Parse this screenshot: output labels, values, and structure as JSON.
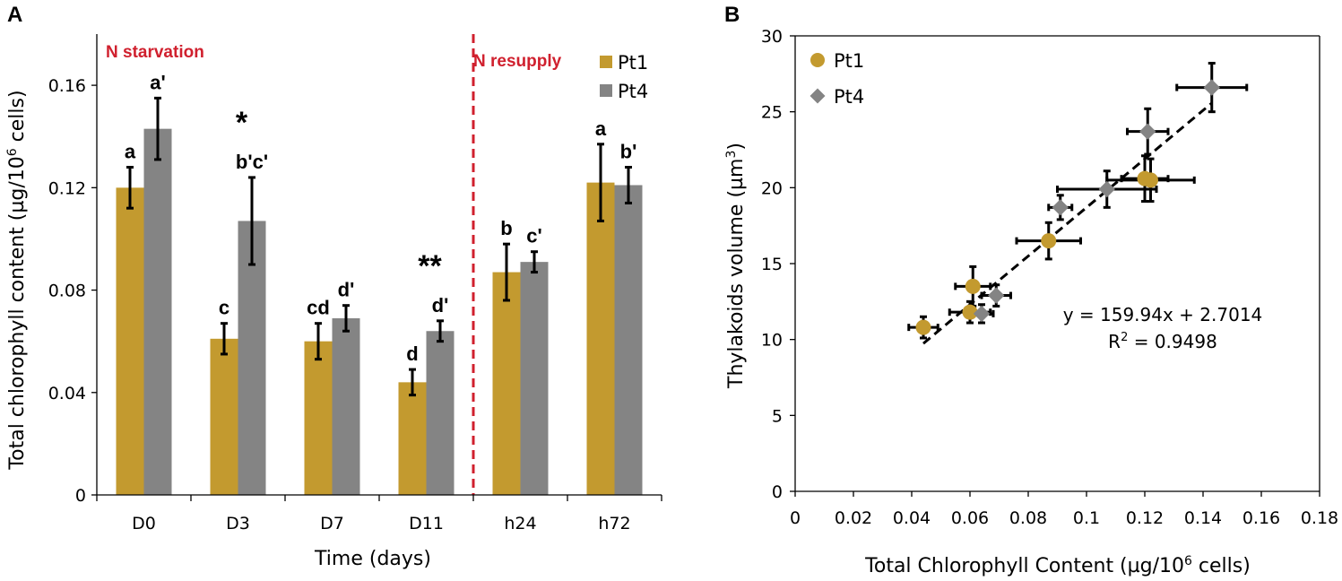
{
  "colors": {
    "pt1": "#c39a2f",
    "pt4": "#848484",
    "divider": "#d0202e"
  },
  "panel_a": {
    "letter": "A",
    "phase_labels": {
      "starvation": "N starvation",
      "resupply": "N resupply"
    },
    "legend": [
      "Pt1",
      "Pt4"
    ]
  },
  "panel_b": {
    "letter": "B",
    "legend": [
      "Pt1",
      "Pt4"
    ],
    "equation": "y = 159.94x + 2.7014",
    "r2_label": "R",
    "r2_sup": "2",
    "r2_value": " = 0.9498"
  },
  "chart_data": [
    {
      "type": "bar",
      "title": "",
      "xlabel": "Time (days)",
      "ylabel_main": "Total chlorophyll content (µg/10",
      "ylabel_sup": "6",
      "ylabel_end": " cells)",
      "categories": [
        "D0",
        "D3",
        "D7",
        "D11",
        "h24",
        "h72"
      ],
      "ylim": [
        0,
        0.18
      ],
      "yticks": [
        0,
        0.04,
        0.08,
        0.12,
        0.16
      ],
      "ytick_labels": [
        "0",
        "0.04",
        "0.08",
        "0.12",
        "0.16"
      ],
      "series": [
        {
          "name": "Pt1",
          "values": [
            0.12,
            0.061,
            0.06,
            0.044,
            0.087,
            0.122
          ],
          "errors": [
            0.008,
            0.006,
            0.007,
            0.005,
            0.011,
            0.015
          ],
          "labels": [
            "a",
            "c",
            "cd",
            "d",
            "b",
            "a"
          ]
        },
        {
          "name": "Pt4",
          "values": [
            0.143,
            0.107,
            0.069,
            0.064,
            0.091,
            0.121
          ],
          "errors": [
            0.012,
            0.017,
            0.005,
            0.004,
            0.004,
            0.007
          ],
          "labels": [
            "a'",
            "b'c'",
            "d'",
            "d'",
            "c'",
            "b'"
          ]
        }
      ],
      "significance": [
        {
          "category": "D3",
          "text": "*"
        },
        {
          "category": "D11",
          "text": "**"
        }
      ],
      "divider_after_category": "D11"
    },
    {
      "type": "scatter",
      "title": "",
      "xlabel_main": "Total Chlorophyll Content (µg/10",
      "xlabel_sup": "6",
      "xlabel_end": " cells)",
      "ylabel_main": "Thylakoids volume (µm",
      "ylabel_sup": "3",
      "ylabel_end": ")",
      "xlim": [
        0,
        0.18
      ],
      "ylim": [
        0,
        30
      ],
      "xticks": [
        0,
        0.02,
        0.04,
        0.06,
        0.08,
        0.1,
        0.12,
        0.14,
        0.16,
        0.18
      ],
      "xtick_labels": [
        "0",
        "0.02",
        "0.04",
        "0.06",
        "0.08",
        "0.1",
        "0.12",
        "0.14",
        "0.16",
        "0.18"
      ],
      "yticks": [
        0,
        5,
        10,
        15,
        20,
        25,
        30
      ],
      "ytick_labels": [
        "0",
        "5",
        "10",
        "15",
        "20",
        "25",
        "30"
      ],
      "series": [
        {
          "name": "Pt1",
          "marker": "circle",
          "points": [
            {
              "x": 0.12,
              "y": 20.6,
              "xerr": 0.008,
              "yerr": 1.5
            },
            {
              "x": 0.061,
              "y": 13.5,
              "xerr": 0.006,
              "yerr": 1.3
            },
            {
              "x": 0.06,
              "y": 11.8,
              "xerr": 0.007,
              "yerr": 0.7
            },
            {
              "x": 0.044,
              "y": 10.8,
              "xerr": 0.005,
              "yerr": 0.7
            },
            {
              "x": 0.087,
              "y": 16.5,
              "xerr": 0.011,
              "yerr": 1.2
            },
            {
              "x": 0.122,
              "y": 20.5,
              "xerr": 0.015,
              "yerr": 1.4
            }
          ]
        },
        {
          "name": "Pt4",
          "marker": "diamond",
          "points": [
            {
              "x": 0.143,
              "y": 26.6,
              "xerr": 0.012,
              "yerr": 1.6
            },
            {
              "x": 0.121,
              "y": 23.7,
              "xerr": 0.007,
              "yerr": 1.5
            },
            {
              "x": 0.107,
              "y": 19.9,
              "xerr": 0.017,
              "yerr": 1.2
            },
            {
              "x": 0.091,
              "y": 18.7,
              "xerr": 0.004,
              "yerr": 0.8
            },
            {
              "x": 0.069,
              "y": 12.9,
              "xerr": 0.005,
              "yerr": 0.7
            },
            {
              "x": 0.064,
              "y": 11.7,
              "xerr": 0.004,
              "yerr": 0.6
            }
          ]
        }
      ],
      "trendline": {
        "slope": 159.94,
        "intercept": 2.7014,
        "x_range": [
          0.044,
          0.143
        ]
      }
    }
  ]
}
